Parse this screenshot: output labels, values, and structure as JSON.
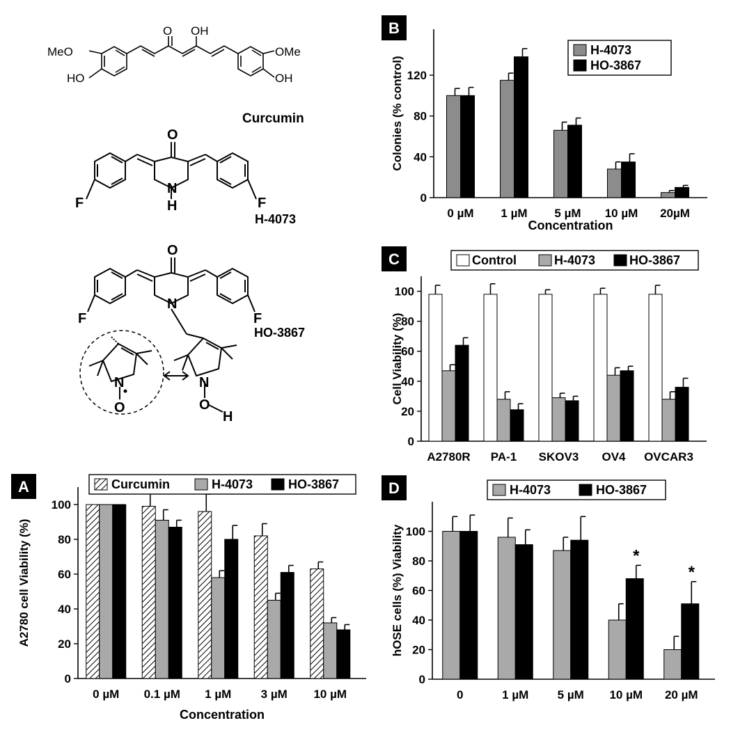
{
  "structures": {
    "curcumin": {
      "name": "Curcumin",
      "groups": {
        "left_ome": "MeO",
        "left_oh": "HO",
        "right_ome": "OMe",
        "right_oh": "OH",
        "keto_o": "O",
        "enol_oh": "OH"
      }
    },
    "h4073": {
      "name": "H-4073",
      "atoms": {
        "f_left": "F",
        "f_right": "F",
        "o": "O",
        "n": "N",
        "h": "H"
      }
    },
    "ho3867": {
      "name": "HO-3867",
      "atoms": {
        "f_left": "F",
        "f_right": "F",
        "o": "O",
        "n": "N",
        "n_nitroxide": "N",
        "o_nitroxide": "O",
        "n_hydroxyl": "N",
        "o_hydroxyl": "O",
        "h_hydroxyl": "H"
      }
    }
  },
  "panel_letters": {
    "a": "A",
    "b": "B",
    "c": "C",
    "d": "D"
  },
  "colors": {
    "curcumin": "hatched",
    "h4073": "#a9a9a9",
    "ho3867": "#000000",
    "control": "#ffffff",
    "gray_b": "#8c8c8c"
  },
  "chart_data": [
    {
      "id": "A",
      "type": "bar",
      "ylabel": "A2780 cell Viability (%)",
      "xlabel": "Concentration",
      "categories": [
        "0 µM",
        "0.1 µM",
        "1 µM",
        "3 µM",
        "10 µM"
      ],
      "ylim": [
        0,
        110
      ],
      "yticks": [
        0,
        20,
        40,
        60,
        80,
        100
      ],
      "legend_position": "top",
      "series": [
        {
          "name": "Curcumin",
          "values": [
            100,
            99,
            96,
            82,
            63
          ],
          "errors": [
            0,
            8,
            10,
            7,
            4
          ]
        },
        {
          "name": "H-4073",
          "values": [
            100,
            91,
            58,
            45,
            32
          ],
          "errors": [
            0,
            6,
            4,
            4,
            3
          ]
        },
        {
          "name": "HO-3867",
          "values": [
            100,
            87,
            80,
            61,
            28
          ],
          "errors": [
            0,
            4,
            8,
            4,
            3
          ]
        }
      ]
    },
    {
      "id": "B",
      "type": "bar",
      "ylabel": "Colonies  (% control)",
      "xlabel": "Concentration",
      "categories": [
        "0 µM",
        "1 µM",
        "5 µM",
        "10 µM",
        "20µM"
      ],
      "ylim": [
        0,
        165
      ],
      "yticks": [
        0,
        40,
        80,
        120
      ],
      "legend_position": "top-right",
      "series": [
        {
          "name": "H-4073",
          "values": [
            100,
            115,
            66,
            28,
            5
          ],
          "errors": [
            7,
            7,
            8,
            7,
            2
          ]
        },
        {
          "name": "HO-3867",
          "values": [
            100,
            138,
            71,
            35,
            10
          ],
          "errors": [
            8,
            8,
            7,
            8,
            2
          ]
        }
      ]
    },
    {
      "id": "C",
      "type": "bar",
      "ylabel": "Cell Viability (%)",
      "xlabel": "",
      "categories": [
        "A2780R",
        "PA-1",
        "SKOV3",
        "OV4",
        "OVCAR3"
      ],
      "ylim": [
        0,
        110
      ],
      "yticks": [
        0,
        20,
        40,
        60,
        80,
        100
      ],
      "legend_position": "top",
      "series": [
        {
          "name": "Control",
          "values": [
            98,
            98,
            98,
            98,
            98
          ],
          "errors": [
            6,
            7,
            3,
            4,
            6
          ]
        },
        {
          "name": "H-4073",
          "values": [
            47,
            28,
            29,
            44,
            28
          ],
          "errors": [
            4,
            5,
            3,
            5,
            5
          ]
        },
        {
          "name": "HO-3867",
          "values": [
            64,
            21,
            27,
            47,
            36
          ],
          "errors": [
            5,
            4,
            3,
            3,
            6
          ]
        }
      ]
    },
    {
      "id": "D",
      "type": "bar",
      "ylabel": "hOSE cells (%) Viability",
      "xlabel": "",
      "categories": [
        "0",
        "1 µM",
        "5 µM",
        "10 µM",
        "20 µM"
      ],
      "ylim": [
        0,
        120
      ],
      "yticks": [
        0,
        20,
        40,
        60,
        80,
        100
      ],
      "legend_position": "top",
      "significance": [
        "",
        "",
        "",
        "*",
        "*"
      ],
      "series": [
        {
          "name": "H-4073",
          "values": [
            100,
            96,
            87,
            40,
            20
          ],
          "errors": [
            10,
            13,
            9,
            11,
            9
          ]
        },
        {
          "name": "HO-3867",
          "values": [
            100,
            91,
            94,
            68,
            51
          ],
          "errors": [
            11,
            10,
            16,
            9,
            15
          ]
        }
      ]
    }
  ]
}
